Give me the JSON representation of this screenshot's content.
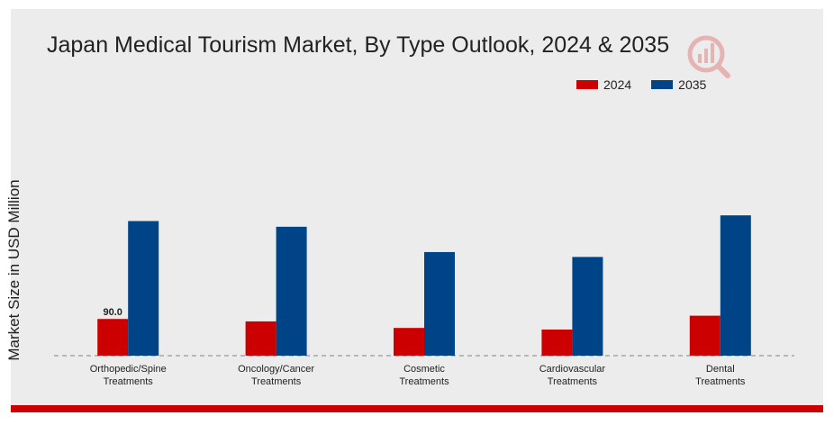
{
  "chart_data": {
    "type": "bar",
    "title": "Japan Medical Tourism Market, By Type Outlook, 2024 & 2035",
    "xlabel": "",
    "ylabel": "Market Size in USD Million",
    "categories": [
      [
        "Orthopedic/Spine",
        "Treatments"
      ],
      [
        "Oncology/Cancer",
        "Treatments"
      ],
      [
        "Cosmetic",
        "Treatments"
      ],
      [
        "Cardiovascular",
        "Treatments"
      ],
      [
        "Dental",
        "Treatments"
      ]
    ],
    "series": [
      {
        "name": "2024",
        "color": "#cc0000",
        "values": [
          90.0,
          84.0,
          68.0,
          64.0,
          98.0
        ]
      },
      {
        "name": "2035",
        "color": "#004488",
        "values": [
          330.0,
          316.0,
          254.0,
          242.0,
          344.0
        ]
      }
    ],
    "data_labels": [
      {
        "series": 0,
        "index": 0,
        "text": "90.0"
      }
    ],
    "ylim": [
      0,
      420
    ],
    "grid": false,
    "legend_position": "top-right"
  },
  "logo": {
    "icon": "market-research-logo-icon",
    "color": "#cc0000"
  }
}
